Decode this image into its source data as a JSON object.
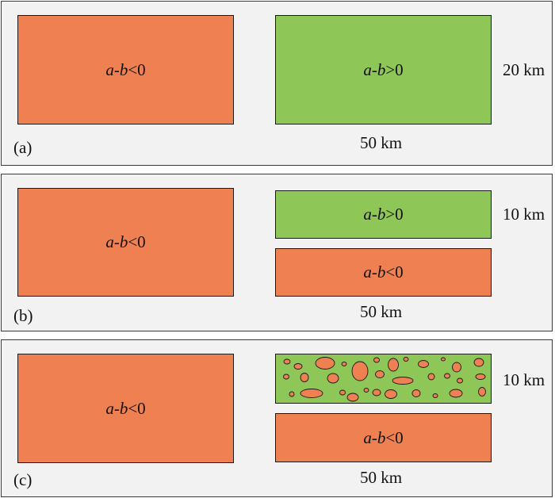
{
  "colors": {
    "orange": "#ef8051",
    "green": "#8ec657",
    "panel": "#f2f2f2",
    "border": "#1a1a1a"
  },
  "panels": {
    "a": {
      "letter": "(a)",
      "left_block": {
        "a": "a",
        "dash": "-",
        "b": "b",
        "sign": "<0"
      },
      "right_block": {
        "a": "a",
        "dash": "-",
        "b": "b",
        "sign": ">0"
      },
      "thickness": "20 km",
      "length": "50 km"
    },
    "b": {
      "letter": "(b)",
      "left_block": {
        "a": "a",
        "dash": "-",
        "b": "b",
        "sign": "<0"
      },
      "right_top": {
        "a": "a",
        "dash": "-",
        "b": "b",
        "sign": ">0"
      },
      "right_bottom": {
        "a": "a",
        "dash": "-",
        "b": "b",
        "sign": "<0"
      },
      "thickness": "10 km",
      "length": "50 km"
    },
    "c": {
      "letter": "(c)",
      "left_block": {
        "a": "a",
        "dash": "-",
        "b": "b",
        "sign": "<0"
      },
      "right_bottom": {
        "a": "a",
        "dash": "-",
        "b": "b",
        "sign": "<0"
      },
      "thickness": "10 km",
      "length": "50 km"
    }
  }
}
